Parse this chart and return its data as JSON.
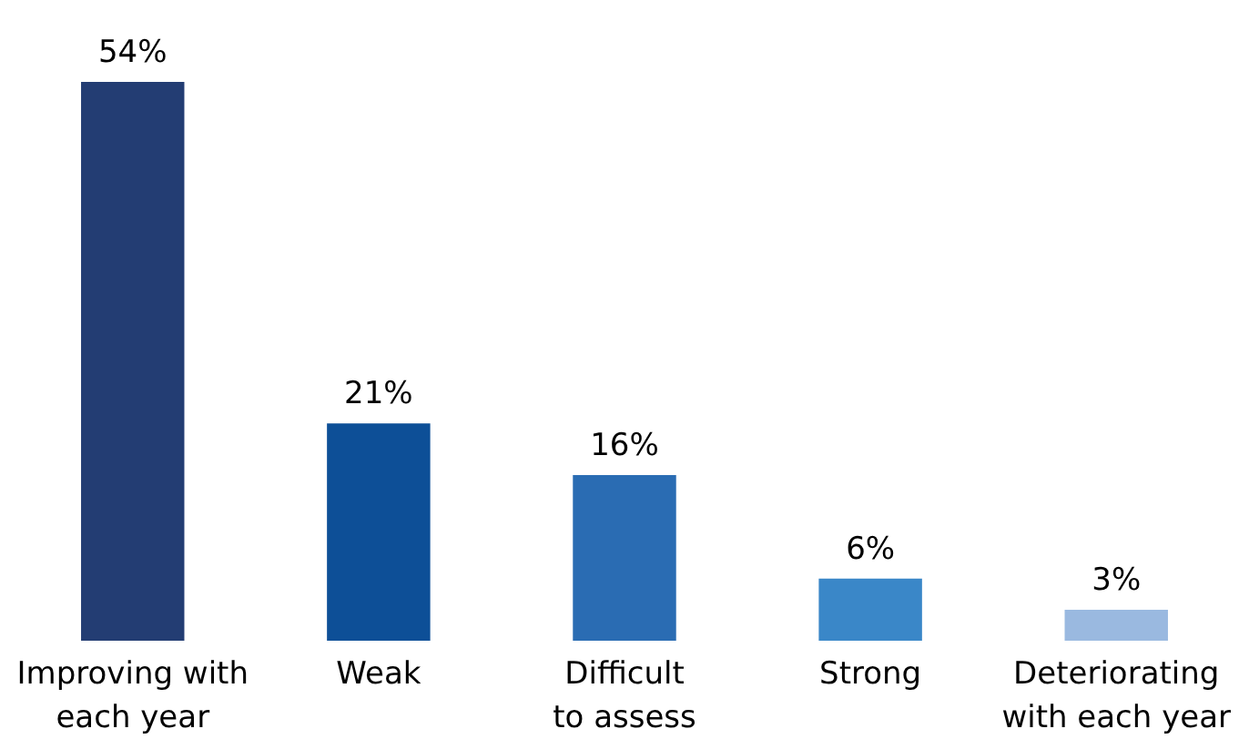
{
  "chart_data": {
    "type": "bar",
    "categories": [
      "Improving with\neach year",
      "Weak",
      "Difficult\nto assess",
      "Strong",
      "Deteriorating\nwith each year"
    ],
    "values": [
      54,
      21,
      16,
      6,
      3
    ],
    "colors": [
      "#233d73",
      "#0d4f97",
      "#2a6cb3",
      "#3a87c8",
      "#9ab9e0"
    ],
    "value_labels": [
      "54%",
      "21%",
      "16%",
      "6%",
      "3%"
    ]
  }
}
